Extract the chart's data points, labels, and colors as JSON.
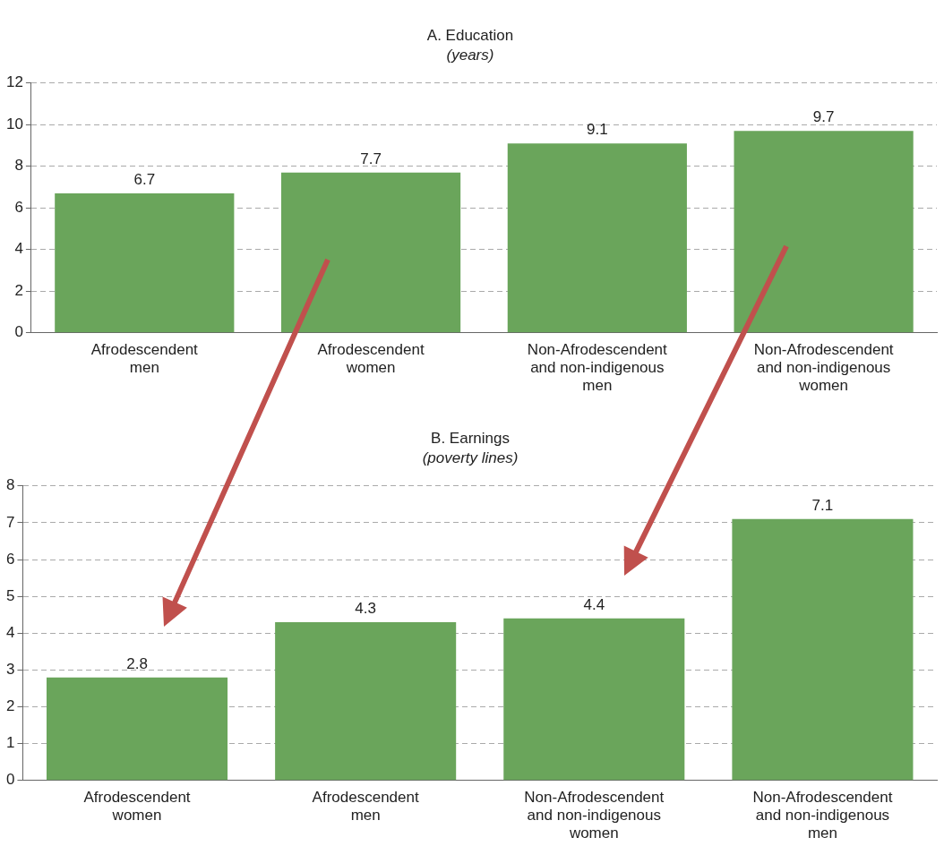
{
  "chart_data": [
    {
      "type": "bar",
      "title": "A. Education",
      "subtitle": "(years)",
      "categories": [
        "Afrodescendent men",
        "Afrodescendent women",
        "Non-Afrodescendent and non-indigenous men",
        "Non-Afrodescendent and non-indigenous women"
      ],
      "values": [
        6.7,
        7.7,
        9.1,
        9.7
      ],
      "color": "#6aa55b",
      "ylim": [
        0,
        12
      ],
      "yticks": [
        0,
        2,
        4,
        6,
        8,
        10,
        12
      ],
      "grid": "y",
      "data_labels": true
    },
    {
      "type": "bar",
      "title": "B. Earnings",
      "subtitle": "(poverty lines)",
      "categories": [
        "Afrodescendent women",
        "Afrodescendent men",
        "Non-Afrodescendent and non-indigenous women",
        "Non-Afrodescendent and non-indigenous men"
      ],
      "values": [
        2.8,
        4.3,
        4.4,
        7.1
      ],
      "color": "#6aa55b",
      "ylim": [
        0,
        8
      ],
      "yticks": [
        0,
        1,
        2,
        3,
        4,
        5,
        6,
        7,
        8
      ],
      "grid": "y",
      "data_labels": true
    }
  ]
}
